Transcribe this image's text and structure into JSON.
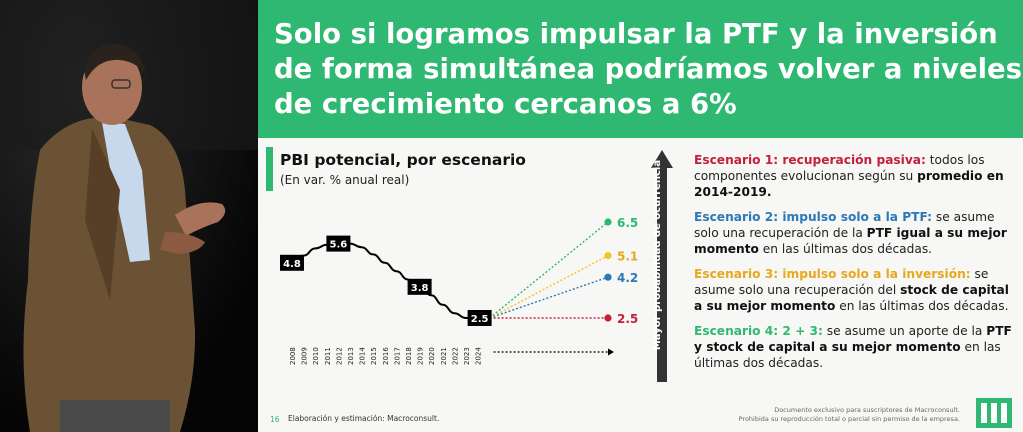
{
  "slide": {
    "title_lines": [
      "Solo si logramos impulsar la PTF y la inversión",
      "de forma simultánea podríamos volver a niveles",
      "de crecimiento cercanos a 6%"
    ],
    "chart_title": "PBI potencial, por escenario",
    "chart_subtitle": "(En var. % anual real)",
    "arrow_label": "Mayor probabilidad de ocurrencia",
    "scenarios": [
      {
        "head": "Escenario 1: recuperación pasiva:",
        "p1": " todos los componentes evolucionan según su ",
        "b1": "promedio en 2014-2019.",
        "p2": ""
      },
      {
        "head": "Escenario 2: impulso solo a la PTF:",
        "p1": " se asume solo una recuperación de la ",
        "b1": "PTF igual a su mejor momento",
        "p2": " en las últimas dos décadas."
      },
      {
        "head": "Escenario 3: impulso solo a la inversión:",
        "p1": " se asume solo una recuperación del ",
        "b1": "stock de capital a su mejor momento",
        "p2": " en las últimas dos décadas."
      },
      {
        "head": "Escenario 4: 2 + 3:",
        "p1": " se asume un aporte de la ",
        "b1": "PTF y stock de capital a su mejor momento",
        "p2": " en las últimas dos décadas."
      }
    ],
    "footer_page": "16",
    "footer_source": "Elaboración y estimación: Macroconsult.",
    "footer_right_1": "Documento exclusivo para suscriptores de Macroconsult.",
    "footer_right_2": "Prohibida su reproducción total o parcial sin permiso de la empresa."
  },
  "colors": {
    "brand_green": "#2fb872",
    "scenario1": "#c4203b",
    "scenario2": "#2d78b6",
    "scenario3": "#f2c524",
    "scenario4": "#2fb872"
  },
  "chart_data": {
    "type": "line",
    "title": "PBI potencial, por escenario",
    "subtitle": "(En var. % anual real)",
    "x": [
      "2008",
      "2009",
      "2010",
      "2011",
      "2012",
      "2013",
      "2014",
      "2015",
      "2016",
      "2017",
      "2018",
      "2019",
      "2020",
      "2021",
      "2022",
      "2023",
      "2024"
    ],
    "historical": {
      "values": [
        4.8,
        5.1,
        5.4,
        5.55,
        5.6,
        5.6,
        5.45,
        5.15,
        4.8,
        4.45,
        4.1,
        3.8,
        3.45,
        3.05,
        2.7,
        2.5,
        2.5
      ],
      "labels": [
        {
          "year": "2008",
          "value": 4.8,
          "text": "4.8"
        },
        {
          "year": "2012",
          "value": 5.6,
          "text": "5.6"
        },
        {
          "year": "2019",
          "value": 3.8,
          "text": "3.8"
        },
        {
          "year": "2024",
          "value": 2.5,
          "text": "2.5"
        }
      ]
    },
    "projections": [
      {
        "scenario": "Escenario 1",
        "color": "#c4203b",
        "value": 2.5,
        "text": "2.5"
      },
      {
        "scenario": "Escenario 2",
        "color": "#2d78b6",
        "value": 4.2,
        "text": "4.2"
      },
      {
        "scenario": "Escenario 3",
        "color": "#f2c524",
        "value": 5.1,
        "text": "5.1"
      },
      {
        "scenario": "Escenario 4",
        "color": "#2fb872",
        "value": 6.5,
        "text": "6.5"
      }
    ],
    "ylim": [
      2.0,
      7.0
    ],
    "grid": false
  }
}
